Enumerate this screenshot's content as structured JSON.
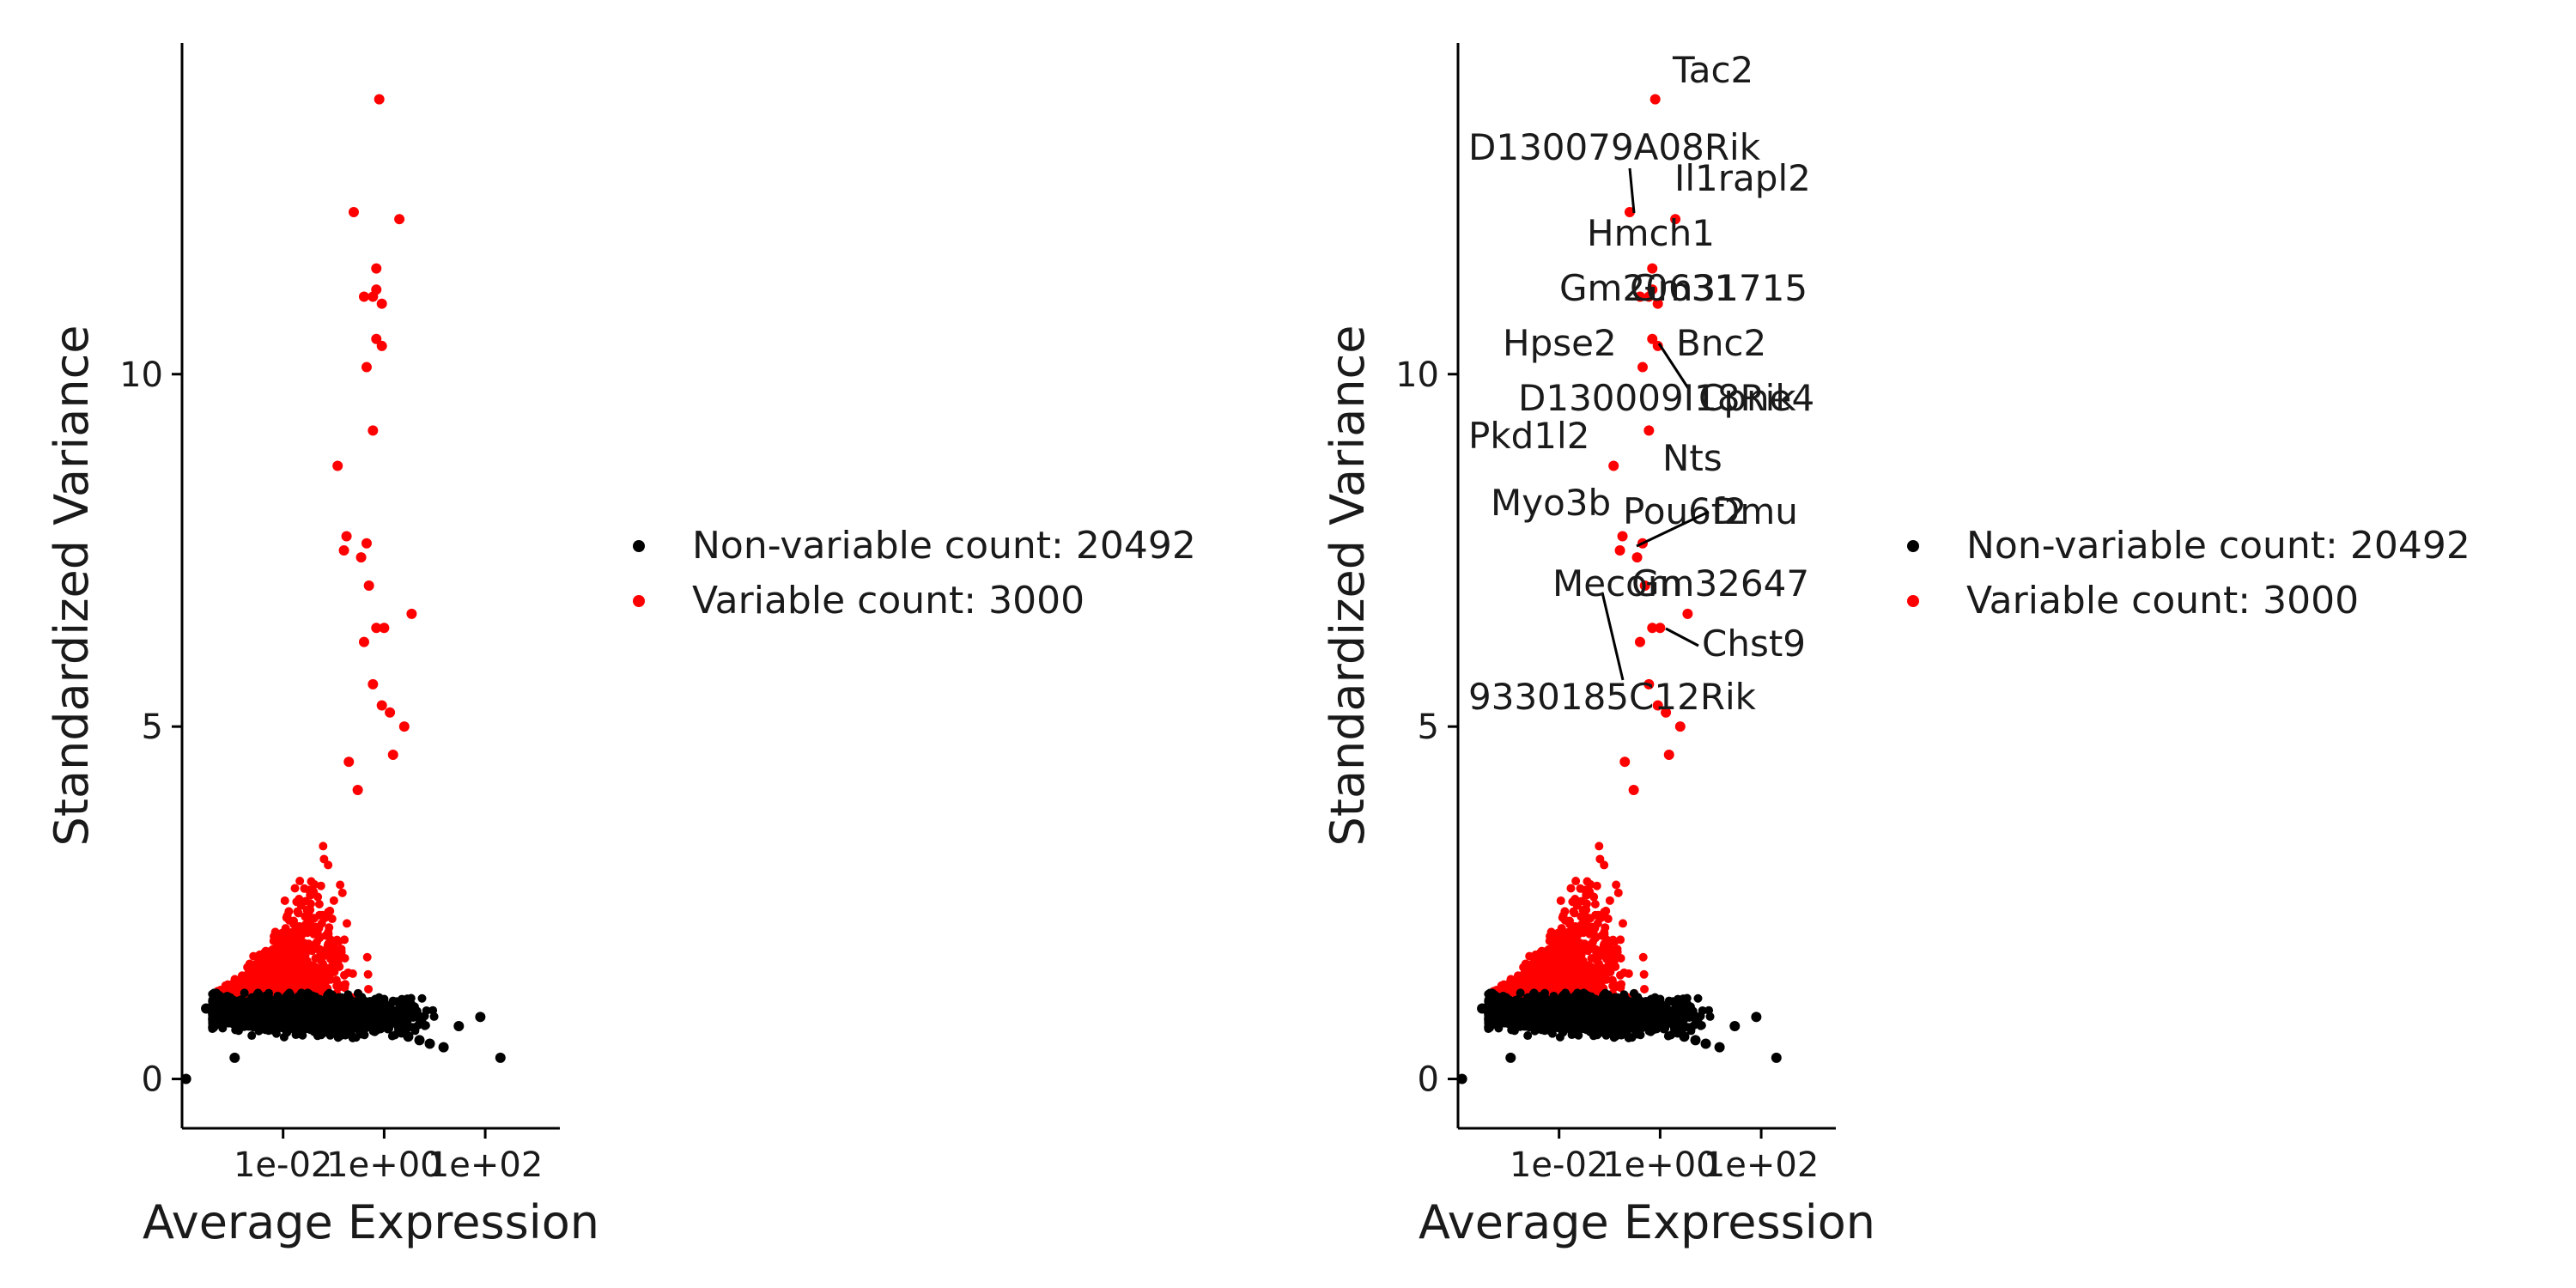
{
  "chart_data": [
    {
      "type": "scatter",
      "xlabel": "Average Expression",
      "ylabel": "Standardized Variance",
      "x_scale": "log10",
      "xlim": [
        0.0001,
        3000
      ],
      "ylim": [
        -0.7,
        14.7
      ],
      "x_ticks": [
        {
          "value": 0.01,
          "label": "1e-02"
        },
        {
          "value": 1,
          "label": "1e+00"
        },
        {
          "value": 100,
          "label": "1e+02"
        }
      ],
      "y_ticks": [
        {
          "value": 0,
          "label": "0"
        },
        {
          "value": 5,
          "label": "5"
        },
        {
          "value": 10,
          "label": "10"
        }
      ],
      "legend": {
        "position": "right",
        "entries": [
          {
            "label": "Non-variable count: 20492",
            "color": "#000000"
          },
          {
            "label": "Variable count: 3000",
            "color": "#ff0000"
          }
        ]
      },
      "series": [
        {
          "name": "Non-variable count: 20492",
          "color": "#000000",
          "points": [
            [
              0.00012,
              0.0
            ],
            [
              0.0011,
              0.3
            ],
            [
              0.0003,
              1.0
            ],
            [
              0.0004,
              0.98
            ],
            [
              0.0005,
              0.97
            ],
            [
              0.0007,
              0.95
            ],
            [
              0.0009,
              0.93
            ],
            [
              0.0012,
              0.92
            ],
            [
              0.0016,
              0.9
            ],
            [
              0.002,
              0.89
            ],
            [
              0.003,
              0.87
            ],
            [
              0.004,
              0.86
            ],
            [
              0.006,
              0.85
            ],
            [
              0.009,
              0.84
            ],
            [
              0.013,
              0.83
            ],
            [
              0.02,
              0.82
            ],
            [
              0.03,
              0.82
            ],
            [
              0.05,
              0.81
            ],
            [
              0.08,
              0.8
            ],
            [
              0.12,
              0.8
            ],
            [
              0.2,
              0.79
            ],
            [
              0.3,
              0.78
            ],
            [
              0.5,
              0.77
            ],
            [
              0.8,
              0.75
            ],
            [
              1.2,
              0.72
            ],
            [
              2.0,
              0.68
            ],
            [
              3.0,
              0.6
            ],
            [
              5.0,
              0.55
            ],
            [
              8.0,
              0.5
            ],
            [
              15,
              0.45
            ],
            [
              30,
              0.75
            ],
            [
              80,
              0.88
            ],
            [
              200,
              0.3
            ]
          ]
        },
        {
          "name": "Variable count: 3000",
          "color": "#ff0000",
          "points": [
            [
              0.8,
              13.9
            ],
            [
              0.25,
              12.3
            ],
            [
              2.0,
              12.2
            ],
            [
              0.7,
              11.5
            ],
            [
              0.4,
              11.1
            ],
            [
              0.6,
              11.1
            ],
            [
              0.7,
              11.2
            ],
            [
              0.9,
              11.0
            ],
            [
              0.7,
              10.5
            ],
            [
              0.9,
              10.4
            ],
            [
              0.45,
              10.1
            ],
            [
              0.6,
              9.2
            ],
            [
              0.12,
              8.7
            ],
            [
              0.18,
              7.7
            ],
            [
              0.45,
              7.6
            ],
            [
              0.16,
              7.5
            ],
            [
              0.35,
              7.4
            ],
            [
              3.5,
              6.6
            ],
            [
              0.5,
              7.0
            ],
            [
              0.7,
              6.4
            ],
            [
              1.0,
              6.4
            ],
            [
              0.4,
              6.2
            ],
            [
              0.6,
              5.6
            ],
            [
              0.9,
              5.3
            ],
            [
              1.3,
              5.2
            ],
            [
              2.5,
              5.0
            ],
            [
              0.2,
              4.5
            ],
            [
              1.5,
              4.6
            ],
            [
              0.3,
              4.1
            ]
          ]
        }
      ]
    },
    {
      "type": "scatter",
      "xlabel": "Average Expression",
      "ylabel": "Standardized Variance",
      "x_scale": "log10",
      "xlim": [
        0.0001,
        3000
      ],
      "ylim": [
        -0.7,
        14.7
      ],
      "x_ticks": [
        {
          "value": 0.01,
          "label": "1e-02"
        },
        {
          "value": 1,
          "label": "1e+00"
        },
        {
          "value": 100,
          "label": "1e+02"
        }
      ],
      "y_ticks": [
        {
          "value": 0,
          "label": "0"
        },
        {
          "value": 5,
          "label": "5"
        },
        {
          "value": 10,
          "label": "10"
        }
      ],
      "legend": {
        "position": "right",
        "entries": [
          {
            "label": "Non-variable count: 20492",
            "color": "#000000"
          },
          {
            "label": "Variable count: 3000",
            "color": "#ff0000"
          }
        ]
      },
      "series": [
        {
          "name": "Non-variable count: 20492",
          "color": "#000000",
          "points": [
            [
              0.00012,
              0.0
            ],
            [
              0.0011,
              0.3
            ],
            [
              0.0003,
              1.0
            ],
            [
              0.0004,
              0.98
            ],
            [
              0.0005,
              0.97
            ],
            [
              0.0007,
              0.95
            ],
            [
              0.0009,
              0.93
            ],
            [
              0.0012,
              0.92
            ],
            [
              0.0016,
              0.9
            ],
            [
              0.002,
              0.89
            ],
            [
              0.003,
              0.87
            ],
            [
              0.004,
              0.86
            ],
            [
              0.006,
              0.85
            ],
            [
              0.009,
              0.84
            ],
            [
              0.013,
              0.83
            ],
            [
              0.02,
              0.82
            ],
            [
              0.03,
              0.82
            ],
            [
              0.05,
              0.81
            ],
            [
              0.08,
              0.8
            ],
            [
              0.12,
              0.8
            ],
            [
              0.2,
              0.79
            ],
            [
              0.3,
              0.78
            ],
            [
              0.5,
              0.77
            ],
            [
              0.8,
              0.75
            ],
            [
              1.2,
              0.72
            ],
            [
              2.0,
              0.68
            ],
            [
              3.0,
              0.6
            ],
            [
              5.0,
              0.55
            ],
            [
              8.0,
              0.5
            ],
            [
              15,
              0.45
            ],
            [
              30,
              0.75
            ],
            [
              80,
              0.88
            ],
            [
              200,
              0.3
            ]
          ]
        },
        {
          "name": "Variable count: 3000",
          "color": "#ff0000",
          "points": [
            [
              0.8,
              13.9
            ],
            [
              0.25,
              12.3
            ],
            [
              2.0,
              12.2
            ],
            [
              0.7,
              11.5
            ],
            [
              0.4,
              11.1
            ],
            [
              0.6,
              11.1
            ],
            [
              0.7,
              11.2
            ],
            [
              0.9,
              11.0
            ],
            [
              0.7,
              10.5
            ],
            [
              0.9,
              10.4
            ],
            [
              0.45,
              10.1
            ],
            [
              0.6,
              9.2
            ],
            [
              0.12,
              8.7
            ],
            [
              0.18,
              7.7
            ],
            [
              0.45,
              7.6
            ],
            [
              0.16,
              7.5
            ],
            [
              0.35,
              7.4
            ],
            [
              3.5,
              6.6
            ],
            [
              0.5,
              7.0
            ],
            [
              0.7,
              6.4
            ],
            [
              1.0,
              6.4
            ],
            [
              0.4,
              6.2
            ],
            [
              0.6,
              5.6
            ],
            [
              0.9,
              5.3
            ],
            [
              1.3,
              5.2
            ],
            [
              2.5,
              5.0
            ],
            [
              0.2,
              4.5
            ],
            [
              1.5,
              4.6
            ],
            [
              0.3,
              4.1
            ]
          ]
        }
      ],
      "annotations": [
        {
          "text": "Tac2",
          "x": 0.8,
          "y": 13.9
        },
        {
          "text": "D130079A08Rik",
          "x": 0.25,
          "y": 12.3
        },
        {
          "text": "Il1rapl2",
          "x": 2.0,
          "y": 12.2
        },
        {
          "text": "Hmch1",
          "x": 0.7,
          "y": 11.5
        },
        {
          "text": "Gm20631",
          "x": 0.4,
          "y": 11.1
        },
        {
          "text": "Gm31715",
          "x": 0.9,
          "y": 11.0
        },
        {
          "text": "Hpse2",
          "x": 0.7,
          "y": 10.5
        },
        {
          "text": "Bnc2",
          "x": 0.9,
          "y": 10.4
        },
        {
          "text": "D130009I18Rik",
          "x": 0.45,
          "y": 10.1
        },
        {
          "text": "Cpne4",
          "x": 0.9,
          "y": 10.4
        },
        {
          "text": "Pkd1l2",
          "x": 0.12,
          "y": 8.7
        },
        {
          "text": "Nts",
          "x": 0.6,
          "y": 9.2
        },
        {
          "text": "Myo3b",
          "x": 0.18,
          "y": 7.7
        },
        {
          "text": "Pou6f2",
          "x": 0.35,
          "y": 7.4
        },
        {
          "text": "Dmu",
          "x": 0.35,
          "y": 7.4
        },
        {
          "text": "Mecom",
          "x": 0.4,
          "y": 6.2
        },
        {
          "text": "Gm32647",
          "x": 0.7,
          "y": 6.4
        },
        {
          "text": "Chst9",
          "x": 1.0,
          "y": 6.4
        },
        {
          "text": "9330185C12Rik",
          "x": 0.45,
          "y": 5.7
        }
      ]
    }
  ]
}
